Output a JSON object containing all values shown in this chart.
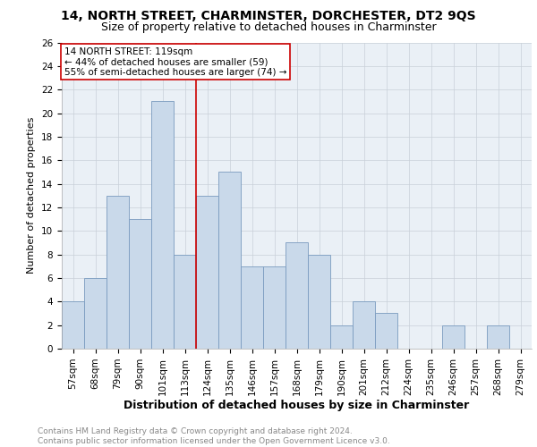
{
  "title": "14, NORTH STREET, CHARMINSTER, DORCHESTER, DT2 9QS",
  "subtitle": "Size of property relative to detached houses in Charminster",
  "xlabel": "Distribution of detached houses by size in Charminster",
  "ylabel": "Number of detached properties",
  "categories": [
    "57sqm",
    "68sqm",
    "79sqm",
    "90sqm",
    "101sqm",
    "113sqm",
    "124sqm",
    "135sqm",
    "146sqm",
    "157sqm",
    "168sqm",
    "179sqm",
    "190sqm",
    "201sqm",
    "212sqm",
    "224sqm",
    "235sqm",
    "246sqm",
    "257sqm",
    "268sqm",
    "279sqm"
  ],
  "values": [
    4,
    6,
    13,
    11,
    21,
    8,
    13,
    15,
    7,
    7,
    9,
    8,
    2,
    4,
    3,
    0,
    0,
    2,
    0,
    2,
    0
  ],
  "bar_color": "#c9d9ea",
  "bar_edge_color": "#7a9bbf",
  "property_line_x": 5.5,
  "annotation_text": "14 NORTH STREET: 119sqm\n← 44% of detached houses are smaller (59)\n55% of semi-detached houses are larger (74) →",
  "annotation_box_color": "#ffffff",
  "annotation_box_edge": "#cc0000",
  "vline_color": "#cc0000",
  "ylim": [
    0,
    26
  ],
  "yticks": [
    0,
    2,
    4,
    6,
    8,
    10,
    12,
    14,
    16,
    18,
    20,
    22,
    24,
    26
  ],
  "grid_color": "#c8d0d8",
  "footer_text": "Contains HM Land Registry data © Crown copyright and database right 2024.\nContains public sector information licensed under the Open Government Licence v3.0.",
  "background_color": "#eaf0f6",
  "title_fontsize": 10,
  "subtitle_fontsize": 9,
  "xlabel_fontsize": 9,
  "ylabel_fontsize": 8,
  "tick_fontsize": 7.5,
  "annotation_fontsize": 7.5,
  "footer_fontsize": 6.5
}
